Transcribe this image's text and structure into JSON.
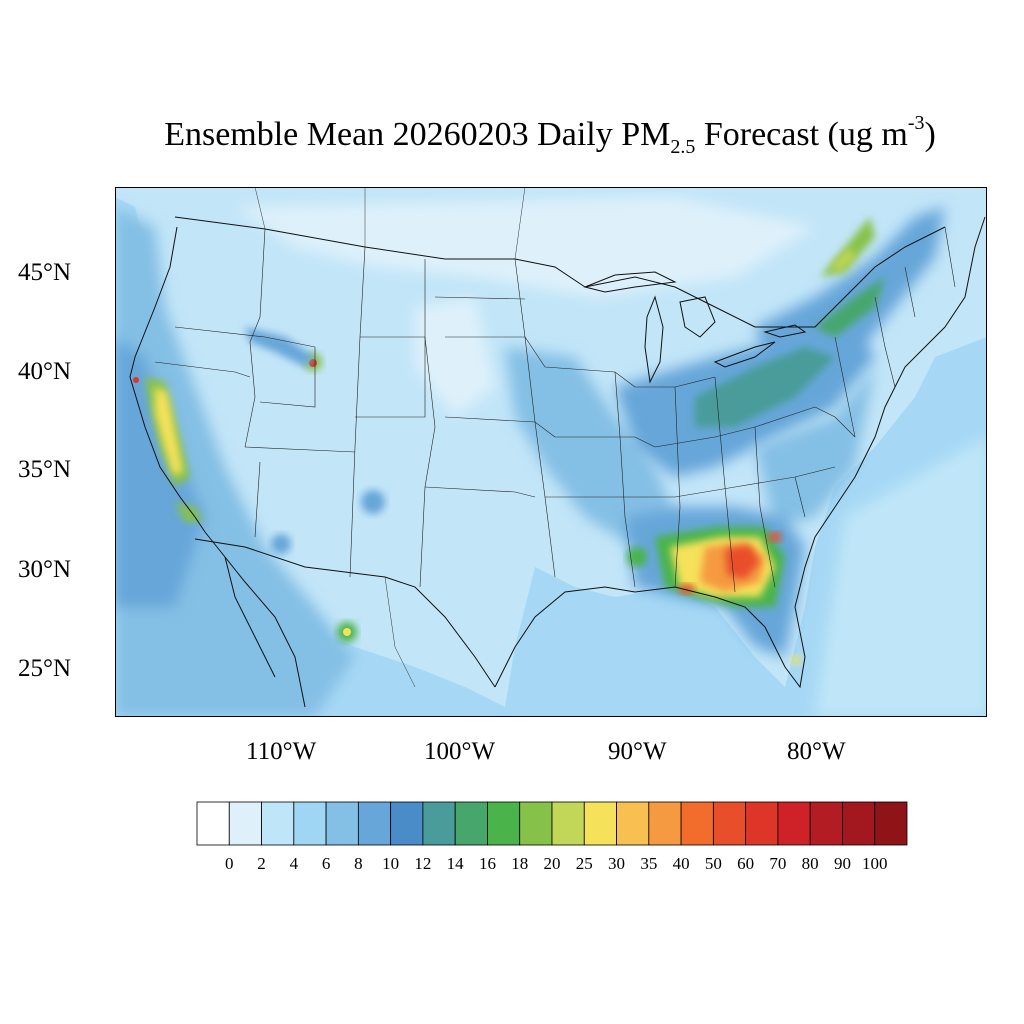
{
  "title": {
    "main": "Ensemble Mean 20260203 Daily PM",
    "subscript": "2.5",
    "middle": " Forecast (ug m",
    "superscript": "-3",
    "end": ")"
  },
  "latitude_labels": [
    "45°N",
    "40°N",
    "35°N",
    "30°N",
    "25°N"
  ],
  "longitude_labels": [
    "110°W",
    "100°W",
    "90°W",
    "80°W"
  ],
  "colorbar": {
    "labels": [
      "0",
      "2",
      "4",
      "6",
      "8",
      "10",
      "12",
      "14",
      "16",
      "18",
      "20",
      "25",
      "30",
      "35",
      "40",
      "50",
      "60",
      "70",
      "80",
      "90",
      "100"
    ],
    "colors": [
      "#ffffff",
      "#def1fb",
      "#bfe6f8",
      "#9fd6f4",
      "#84bfe5",
      "#66a6d9",
      "#4a8cc8",
      "#4a9c9a",
      "#46a66c",
      "#4ab44a",
      "#86c24a",
      "#c2d658",
      "#f6e15a",
      "#f7c050",
      "#f59a40",
      "#f26c2c",
      "#e94e2a",
      "#dd3628",
      "#cf2128",
      "#b41c24",
      "#a2181e",
      "#8e1417"
    ]
  },
  "map_colors": {
    "ocean": "#a6d8f5",
    "land_base": "#c2e5f8",
    "border": "#111111"
  }
}
